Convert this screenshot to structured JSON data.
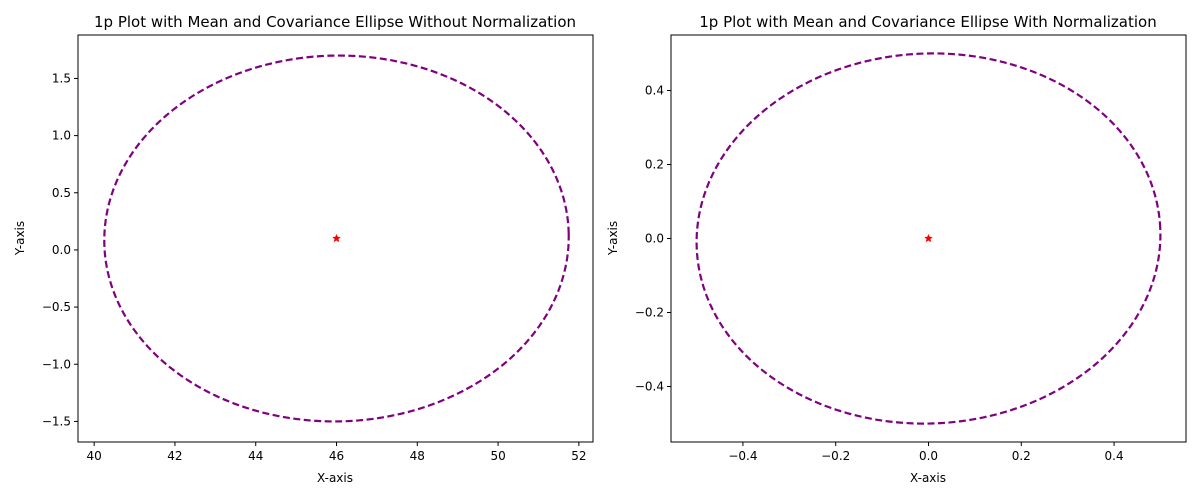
{
  "chart_data": [
    {
      "type": "scatter",
      "title": "1p Plot with Mean and Covariance Ellipse Without Normalization",
      "xlabel": "X-axis",
      "ylabel": "Y-axis",
      "xlim": [
        39.6,
        52.35
      ],
      "ylim": [
        -1.68,
        1.88
      ],
      "xticks": [
        40,
        42,
        44,
        46,
        48,
        50,
        52
      ],
      "xtick_labels": [
        "40",
        "42",
        "44",
        "46",
        "48",
        "50",
        "52"
      ],
      "yticks": [
        -1.5,
        -1.0,
        -0.5,
        0.0,
        0.5,
        1.0,
        1.5
      ],
      "ytick_labels": [
        "−1.5",
        "−1.0",
        "−0.5",
        "0.0",
        "0.5",
        "1.0",
        "1.5"
      ],
      "mean": {
        "x": 46.0,
        "y": 0.1,
        "marker": "star",
        "color": "#ff0000"
      },
      "ellipse": {
        "cx": 46.0,
        "cy": 0.1,
        "rx": 5.75,
        "ry": 1.6,
        "angle_deg": -1.2,
        "color": "#800080",
        "linestyle": "dashed"
      },
      "grid": false
    },
    {
      "type": "scatter",
      "title": "1p Plot with Mean and Covariance Ellipse With Normalization",
      "xlabel": "X-axis",
      "ylabel": "Y-axis",
      "xlim": [
        -0.555,
        0.555
      ],
      "ylim": [
        -0.55,
        0.55
      ],
      "xticks": [
        -0.4,
        -0.2,
        0.0,
        0.2,
        0.4
      ],
      "xtick_labels": [
        "−0.4",
        "−0.2",
        "0.0",
        "0.2",
        "0.4"
      ],
      "yticks": [
        -0.4,
        -0.2,
        0.0,
        0.2,
        0.4
      ],
      "ytick_labels": [
        "−0.4",
        "−0.2",
        "0.0",
        "0.2",
        "0.4"
      ],
      "mean": {
        "x": 0.0,
        "y": 0.0,
        "marker": "star",
        "color": "#ff0000"
      },
      "ellipse": {
        "cx": 0.0,
        "cy": 0.0,
        "rx": 0.5,
        "ry": 0.5,
        "angle_deg": -2.5,
        "color": "#800080",
        "linestyle": "dashed"
      },
      "grid": false
    }
  ]
}
